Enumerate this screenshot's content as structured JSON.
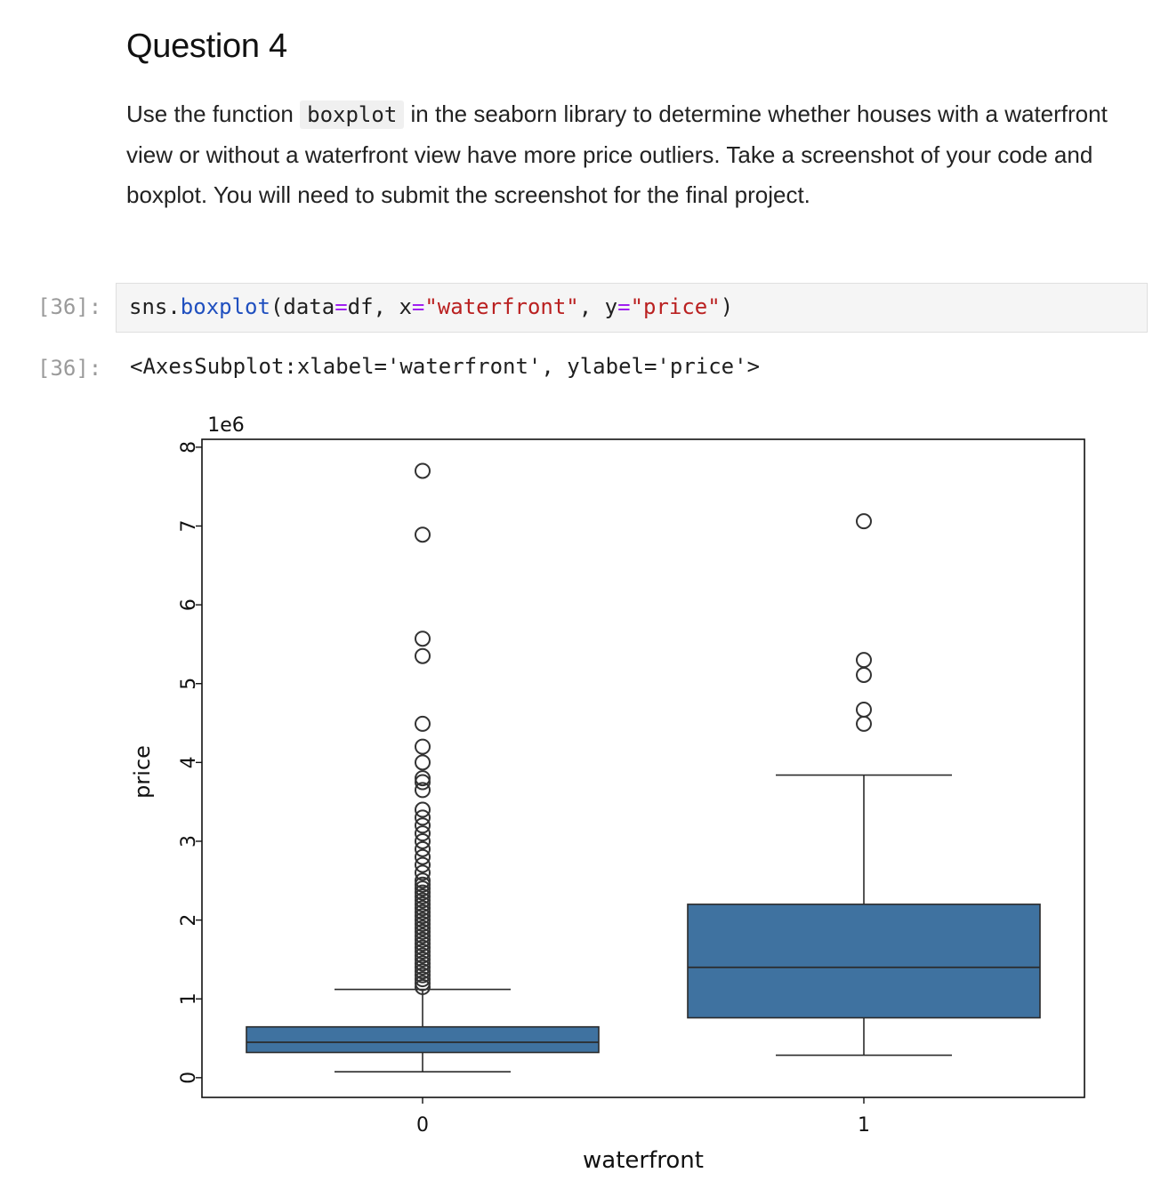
{
  "markdown": {
    "heading": "Question 4",
    "para_pre": "Use the function ",
    "para_code": "boxplot",
    "para_post": " in the seaborn library to determine whether houses with a waterfront view or without a waterfront view have more price outliers. Take a screenshot of your code and boxplot. You will need to submit the screenshot for the final project."
  },
  "cell": {
    "in_prompt": "[36]:",
    "out_prompt": "[36]:",
    "code": {
      "t1": "sns.",
      "t2": "boxplot",
      "t3": "(data",
      "t4": "=",
      "t5": "df, x",
      "t6": "=",
      "t7": "\"waterfront\"",
      "t8": ", y",
      "t9": "=",
      "t10": "\"price\"",
      "t11": ")"
    },
    "output_text": "<AxesSubplot:xlabel='waterfront', ylabel='price'>"
  },
  "chart_data": {
    "type": "box",
    "xlabel": "waterfront",
    "ylabel": "price",
    "offset_label": "1e6",
    "categories": [
      "0",
      "1"
    ],
    "yticks": [
      "0",
      "1",
      "2",
      "3",
      "4",
      "5",
      "6",
      "7",
      "8"
    ],
    "ylim": [
      -0.25,
      8.1
    ],
    "box_color": "#3f72a0",
    "boxes": [
      {
        "category": "0",
        "whisker_low": 0.075,
        "q1": 0.32,
        "median": 0.45,
        "q3": 0.645,
        "whisker_high": 1.12,
        "outliers": [
          7.7,
          6.89,
          5.57,
          5.35,
          4.49,
          4.2,
          4.0,
          3.8,
          3.75,
          3.65,
          3.4,
          3.3,
          3.2,
          3.1,
          3.0,
          2.9,
          2.8,
          2.7,
          2.6,
          2.5,
          2.45,
          2.4,
          2.35,
          2.3,
          2.25,
          2.2,
          2.15,
          2.1,
          2.05,
          2.0,
          1.95,
          1.9,
          1.85,
          1.8,
          1.75,
          1.7,
          1.65,
          1.6,
          1.55,
          1.5,
          1.45,
          1.4,
          1.35,
          1.3,
          1.25,
          1.2,
          1.15
        ]
      },
      {
        "category": "1",
        "whisker_low": 0.285,
        "q1": 0.76,
        "median": 1.4,
        "q3": 2.2,
        "whisker_high": 3.84,
        "outliers": [
          7.06,
          5.3,
          5.11,
          4.67,
          4.49
        ]
      }
    ]
  }
}
